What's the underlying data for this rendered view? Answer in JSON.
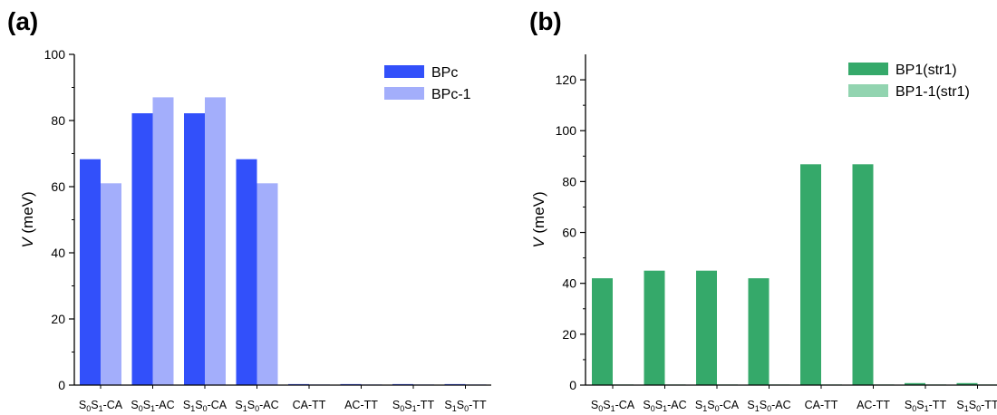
{
  "panels": [
    {
      "label": "(a)"
    },
    {
      "label": "(b)"
    }
  ],
  "chart_data": [
    {
      "type": "bar",
      "categories": [
        {
          "S": [
            "S",
            "0",
            "S",
            "1"
          ],
          "suffix": "-CA",
          "text": "S0S1-CA"
        },
        {
          "S": [
            "S",
            "0",
            "S",
            "1"
          ],
          "suffix": "-AC",
          "text": "S0S1-AC"
        },
        {
          "S": [
            "S",
            "1",
            "S",
            "0"
          ],
          "suffix": "-CA",
          "text": "S1S0-CA"
        },
        {
          "S": [
            "S",
            "1",
            "S",
            "0"
          ],
          "suffix": "-AC",
          "text": "S1S0-AC"
        },
        {
          "S": [],
          "suffix": "CA-TT",
          "text": "CA-TT"
        },
        {
          "S": [],
          "suffix": "AC-TT",
          "text": "AC-TT"
        },
        {
          "S": [
            "S",
            "0",
            "S",
            "1"
          ],
          "suffix": "-TT",
          "text": "S0S1-TT"
        },
        {
          "S": [
            "S",
            "1",
            "S",
            "0"
          ],
          "suffix": "-TT",
          "text": "S1S0-TT"
        }
      ],
      "series": [
        {
          "name": "BPc",
          "color": "#3250fa",
          "values": [
            68.3,
            82.2,
            82.2,
            68.3,
            0.3,
            0.3,
            0.3,
            0.3
          ]
        },
        {
          "name": "BPc-1",
          "color": "#a3aefb",
          "values": [
            61,
            87,
            87,
            61,
            0.2,
            0.2,
            0.2,
            0.2
          ]
        }
      ],
      "ylabel_italic": "V",
      "ylabel_rest": " (meV)",
      "ylim": [
        0,
        100
      ],
      "yticks": [
        0,
        20,
        40,
        60,
        80,
        100
      ],
      "legend_position": "top-right"
    },
    {
      "type": "bar",
      "categories": [
        {
          "S": [
            "S",
            "0",
            "S",
            "1"
          ],
          "suffix": "-CA",
          "text": "S0S1-CA"
        },
        {
          "S": [
            "S",
            "0",
            "S",
            "1"
          ],
          "suffix": "-AC",
          "text": "S0S1-AC"
        },
        {
          "S": [
            "S",
            "1",
            "S",
            "0"
          ],
          "suffix": "-CA",
          "text": "S1S0-CA"
        },
        {
          "S": [
            "S",
            "1",
            "S",
            "0"
          ],
          "suffix": "-AC",
          "text": "S1S0-AC"
        },
        {
          "S": [],
          "suffix": "CA-TT",
          "text": "CA-TT"
        },
        {
          "S": [],
          "suffix": "AC-TT",
          "text": "AC-TT"
        },
        {
          "S": [
            "S",
            "0",
            "S",
            "1"
          ],
          "suffix": "-TT",
          "text": "S0S1-TT"
        },
        {
          "S": [
            "S",
            "1",
            "S",
            "0"
          ],
          "suffix": "-TT",
          "text": "S1S0-TT"
        }
      ],
      "series": [
        {
          "name": "BP1(str1)",
          "color": "#35a96a",
          "values": [
            42,
            45,
            45,
            42,
            86.8,
            86.8,
            0.8,
            0.8
          ]
        },
        {
          "name": "BP1-1(str1)",
          "color": "#92d4b0",
          "values": [
            0.3,
            0.3,
            0.3,
            0.3,
            0.3,
            0.3,
            0.3,
            0.3
          ]
        }
      ],
      "ylabel_italic": "V",
      "ylabel_rest": " (meV)",
      "ylim": [
        0,
        130
      ],
      "yticks": [
        0,
        20,
        40,
        60,
        80,
        100,
        120
      ],
      "legend_position": "top-right"
    }
  ]
}
